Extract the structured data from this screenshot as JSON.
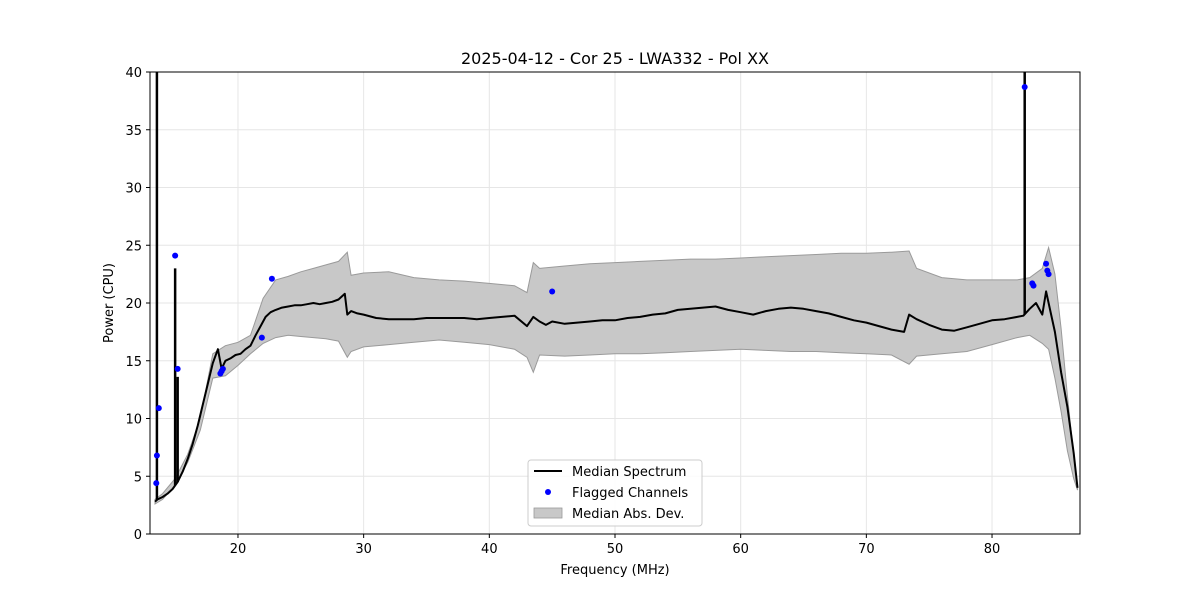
{
  "chart_data": {
    "type": "line",
    "title": "2025-04-12 - Cor 25 - LWA332 - Pol XX",
    "xlabel": "Frequency (MHz)",
    "ylabel": "Power (CPU)",
    "xlim": [
      13,
      87
    ],
    "ylim": [
      0,
      40
    ],
    "xticks": [
      20,
      30,
      40,
      50,
      60,
      70,
      80
    ],
    "yticks": [
      0,
      5,
      10,
      15,
      20,
      25,
      30,
      35,
      40
    ],
    "grid": true,
    "legend_position": "bottom-center",
    "colors": {
      "median": "#000000",
      "flagged": "#0000ff",
      "mad_fill": "#c8c8c8",
      "mad_edge": "#9a9a9a"
    },
    "legend": [
      "Median Spectrum",
      "Flagged Channels",
      "Median Abs. Dev."
    ],
    "series": [
      {
        "name": "Median Spectrum",
        "style": "line",
        "x": [
          13.4,
          13.6,
          13.8,
          14.0,
          14.4,
          14.8,
          15.2,
          15.6,
          16.0,
          16.4,
          16.8,
          17.2,
          17.6,
          18.0,
          18.4,
          18.7,
          19.0,
          19.4,
          19.8,
          20.2,
          20.6,
          21.0,
          21.4,
          21.8,
          22.2,
          22.6,
          23.0,
          23.5,
          24.0,
          24.5,
          25.0,
          25.5,
          26.0,
          26.5,
          27.0,
          27.5,
          28.0,
          28.5,
          28.7,
          29.0,
          29.5,
          30.0,
          31.0,
          32.0,
          33.0,
          34.0,
          35.0,
          36.0,
          37.0,
          38.0,
          39.0,
          40.0,
          41.0,
          42.0,
          43.0,
          43.5,
          44.0,
          44.5,
          45.0,
          46.0,
          47.0,
          48.0,
          49.0,
          50.0,
          51.0,
          52.0,
          53.0,
          54.0,
          55.0,
          56.0,
          57.0,
          58.0,
          59.0,
          60.0,
          61.0,
          62.0,
          63.0,
          64.0,
          65.0,
          66.0,
          67.0,
          68.0,
          69.0,
          70.0,
          71.0,
          72.0,
          73.0,
          73.4,
          74.0,
          75.0,
          76.0,
          77.0,
          78.0,
          79.0,
          80.0,
          81.0,
          82.0,
          82.5,
          83.0,
          83.5,
          84.0,
          84.3,
          84.5,
          85.0,
          85.5,
          86.0,
          86.5,
          86.8
        ],
        "y": [
          2.8,
          3.0,
          3.1,
          3.2,
          3.5,
          3.9,
          4.5,
          5.4,
          6.5,
          7.8,
          9.4,
          11.2,
          13.0,
          14.8,
          16.0,
          14.3,
          15.0,
          15.2,
          15.5,
          15.6,
          16.0,
          16.3,
          17.2,
          18.0,
          18.8,
          19.2,
          19.4,
          19.6,
          19.7,
          19.8,
          19.8,
          19.9,
          20.0,
          19.9,
          20.0,
          20.1,
          20.3,
          20.8,
          19.0,
          19.3,
          19.1,
          19.0,
          18.7,
          18.6,
          18.6,
          18.6,
          18.7,
          18.7,
          18.7,
          18.7,
          18.6,
          18.7,
          18.8,
          18.9,
          18.0,
          18.8,
          18.4,
          18.1,
          18.4,
          18.2,
          18.3,
          18.4,
          18.5,
          18.5,
          18.7,
          18.8,
          19.0,
          19.1,
          19.4,
          19.5,
          19.6,
          19.7,
          19.4,
          19.2,
          19.0,
          19.3,
          19.5,
          19.6,
          19.5,
          19.3,
          19.1,
          18.8,
          18.5,
          18.3,
          18.0,
          17.7,
          17.5,
          19.0,
          18.6,
          18.1,
          17.7,
          17.6,
          17.9,
          18.2,
          18.5,
          18.6,
          18.8,
          18.9,
          19.5,
          20.0,
          19.0,
          21.0,
          20.0,
          17.5,
          14.0,
          11.0,
          7.0,
          4.0
        ]
      },
      {
        "name": "Median Abs. Dev.",
        "style": "band",
        "x": [
          13.4,
          14.0,
          15.0,
          16.0,
          17.0,
          18.0,
          19.0,
          20.0,
          21.0,
          22.0,
          23.0,
          24.0,
          25.0,
          26.0,
          27.0,
          28.0,
          28.7,
          29.0,
          30.0,
          32.0,
          34.0,
          36.0,
          38.0,
          40.0,
          42.0,
          43.0,
          43.5,
          44.0,
          46.0,
          48.0,
          50.0,
          52.0,
          54.0,
          56.0,
          58.0,
          60.0,
          62.0,
          64.0,
          66.0,
          68.0,
          70.0,
          72.0,
          73.4,
          74.0,
          76.0,
          78.0,
          80.0,
          82.0,
          83.0,
          84.0,
          84.5,
          85.0,
          85.5,
          86.0,
          86.5,
          86.8
        ],
        "lower": [
          2.6,
          3.0,
          4.2,
          6.2,
          9.0,
          13.5,
          13.7,
          14.6,
          15.6,
          16.5,
          17.0,
          17.2,
          17.1,
          17.0,
          16.9,
          16.7,
          15.3,
          15.8,
          16.2,
          16.4,
          16.6,
          16.8,
          16.6,
          16.4,
          16.0,
          15.3,
          14.0,
          15.5,
          15.4,
          15.5,
          15.6,
          15.6,
          15.7,
          15.8,
          15.9,
          16.0,
          15.9,
          15.8,
          15.8,
          15.7,
          15.6,
          15.5,
          14.7,
          15.4,
          15.6,
          15.8,
          16.4,
          17.0,
          17.2,
          16.5,
          16.0,
          13.5,
          10.6,
          7.2,
          4.8,
          3.8
        ],
        "upper": [
          3.0,
          3.5,
          4.8,
          6.9,
          10.0,
          15.6,
          16.3,
          16.6,
          17.2,
          20.4,
          22.0,
          22.3,
          22.7,
          23.0,
          23.3,
          23.6,
          24.4,
          22.4,
          22.6,
          22.7,
          22.2,
          22.0,
          21.9,
          21.7,
          21.5,
          20.9,
          23.5,
          23.0,
          23.2,
          23.4,
          23.5,
          23.6,
          23.7,
          23.8,
          23.8,
          23.9,
          24.0,
          24.1,
          24.2,
          24.3,
          24.3,
          24.4,
          24.5,
          23.0,
          22.2,
          22.0,
          22.0,
          22.0,
          22.2,
          23.0,
          24.8,
          22.5,
          17.8,
          12.0,
          6.8,
          4.0
        ]
      },
      {
        "name": "Flagged Channels",
        "style": "points",
        "x": [
          13.5,
          13.55,
          13.7,
          15.0,
          15.2,
          18.6,
          18.7,
          18.8,
          21.9,
          22.7,
          45.0,
          82.6,
          83.2,
          83.3,
          84.3,
          84.4,
          84.5
        ],
        "y": [
          4.4,
          6.8,
          10.9,
          24.1,
          14.3,
          13.9,
          14.1,
          14.3,
          17.0,
          22.1,
          21.0,
          38.7,
          21.7,
          21.5,
          23.4,
          22.8,
          22.5
        ]
      }
    ],
    "spikes": [
      {
        "x": 13.55,
        "y": 40.0
      },
      {
        "x": 15.0,
        "y": 23.0
      },
      {
        "x": 15.2,
        "y": 13.6
      },
      {
        "x": 82.6,
        "y": 40.0
      }
    ]
  }
}
